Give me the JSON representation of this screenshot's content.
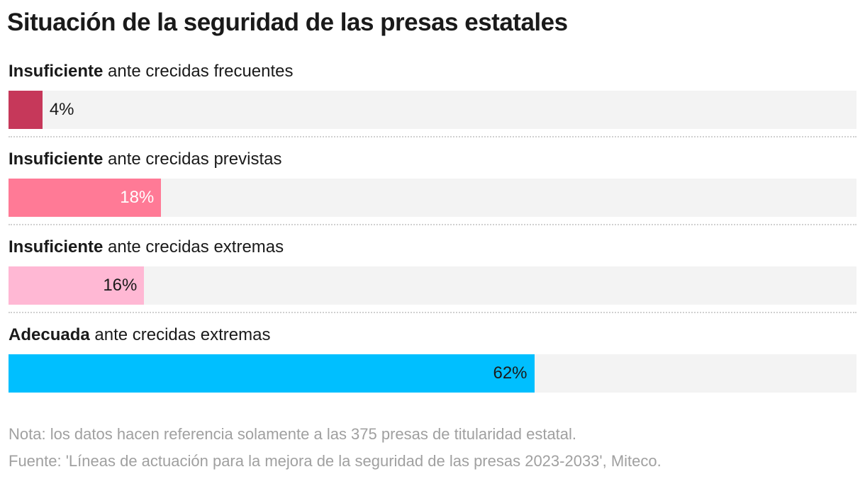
{
  "chart_data": {
    "type": "bar",
    "orientation": "horizontal",
    "title": "Situación de la seguridad de las presas estatales",
    "xlim": [
      0,
      100
    ],
    "unit": "%",
    "categories": [
      {
        "bold": "Insuficiente",
        "rest": " ante crecidas frecuentes"
      },
      {
        "bold": "Insuficiente",
        "rest": " ante crecidas previstas"
      },
      {
        "bold": "Insuficiente",
        "rest": " ante crecidas extremas"
      },
      {
        "bold": "Adecuada",
        "rest": " ante crecidas extremas"
      }
    ],
    "values": [
      4,
      18,
      16,
      62
    ],
    "value_labels": [
      "4%",
      "18%",
      "16%",
      "62%"
    ],
    "colors": [
      "#c6385a",
      "#ff7a96",
      "#ffb8d4",
      "#00bfff"
    ],
    "label_colors": [
      "#1a1a1a",
      "#ffffff",
      "#1a1a1a",
      "#1a1a1a"
    ]
  },
  "notes": {
    "nota": "Nota: los datos hacen referencia solamente a las 375 presas de titularidad estatal.",
    "fuente": "Fuente: 'Líneas de actuación para la mejora de la seguridad de las presas 2023-2033', Miteco."
  }
}
